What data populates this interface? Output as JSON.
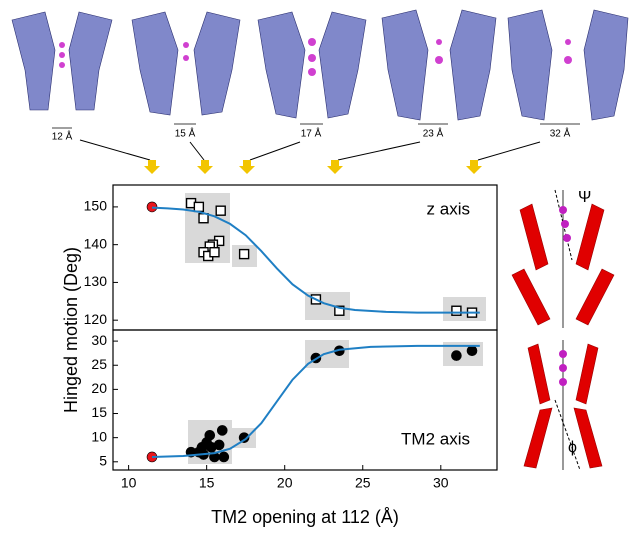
{
  "images": [
    {
      "label": "12 Å"
    },
    {
      "label": "15 Å"
    },
    {
      "label": "17 Å"
    },
    {
      "label": "23 Å"
    },
    {
      "label": "32 Å"
    }
  ],
  "diagrams": {
    "top_symbol": "Ψ",
    "bottom_symbol": "ϕ"
  },
  "chart_data": [
    {
      "type": "scatter",
      "annotation": "z axis",
      "xlim": [
        9,
        33.6
      ],
      "ylim": [
        117.4,
        155.8
      ],
      "yticks": [
        120,
        130,
        140,
        150
      ],
      "series": [
        {
          "color": "#e8141c",
          "marker": "circle",
          "x": [
            11.5
          ],
          "values": [
            150
          ]
        },
        {
          "color": "#000000",
          "marker": "square-open",
          "x": [
            14,
            14.5,
            14.8,
            15.9,
            15.8,
            15.4,
            15.2,
            14.8,
            15.1,
            15.5,
            17.4,
            22,
            23.5,
            31,
            32
          ],
          "values": [
            151,
            150,
            147,
            149,
            141,
            140,
            139.5,
            138,
            137,
            138,
            137.5,
            125.5,
            122.5,
            122.5,
            122
          ]
        },
        {
          "color": "#1f7fc4",
          "marker": "line",
          "x": [
            11.5,
            12.5,
            13.5,
            14.5,
            15.5,
            16.5,
            17.5,
            18.5,
            19.5,
            20.5,
            21.5,
            22.5,
            23.5,
            24.5,
            26.5,
            28.5,
            32.5
          ],
          "values": [
            149.8,
            149.6,
            149.3,
            148.7,
            147.5,
            145.5,
            142.5,
            138.3,
            133.7,
            129.5,
            126.5,
            124.5,
            123.3,
            122.7,
            122.2,
            122,
            122
          ]
        }
      ]
    },
    {
      "type": "scatter",
      "annotation": "TM2 axis",
      "xlabel": "TM2 opening at 112 (Å)",
      "ylabel": "Hinged motion (Deg)",
      "xlim": [
        9,
        33.6
      ],
      "ylim": [
        3.3,
        32.3
      ],
      "xticks": [
        10,
        15,
        20,
        25,
        30
      ],
      "yticks": [
        5,
        10,
        15,
        20,
        25,
        30
      ],
      "series": [
        {
          "color": "#e8141c",
          "marker": "circle",
          "x": [
            11.5
          ],
          "values": [
            6
          ]
        },
        {
          "color": "#000000",
          "marker": "circle",
          "x": [
            14,
            14.5,
            14.7,
            15,
            15.2,
            15.3,
            15.5,
            15.8,
            16,
            16.1,
            14.8,
            17.4,
            22,
            23.5,
            31,
            32
          ],
          "values": [
            7,
            7,
            8,
            9,
            10.5,
            8,
            6,
            8.5,
            11.5,
            6,
            6.5,
            10,
            26.5,
            28,
            27,
            28
          ]
        },
        {
          "color": "#1f7fc4",
          "marker": "line",
          "x": [
            11.5,
            13.5,
            15.5,
            16.5,
            17.5,
            18.5,
            19.5,
            20.5,
            21.5,
            22.5,
            23.5,
            25.5,
            28.5,
            32.5
          ],
          "values": [
            6,
            6.2,
            6.8,
            7.7,
            9.7,
            13,
            17.5,
            22,
            25.3,
            27.3,
            28.2,
            28.8,
            29,
            29
          ]
        }
      ]
    }
  ]
}
